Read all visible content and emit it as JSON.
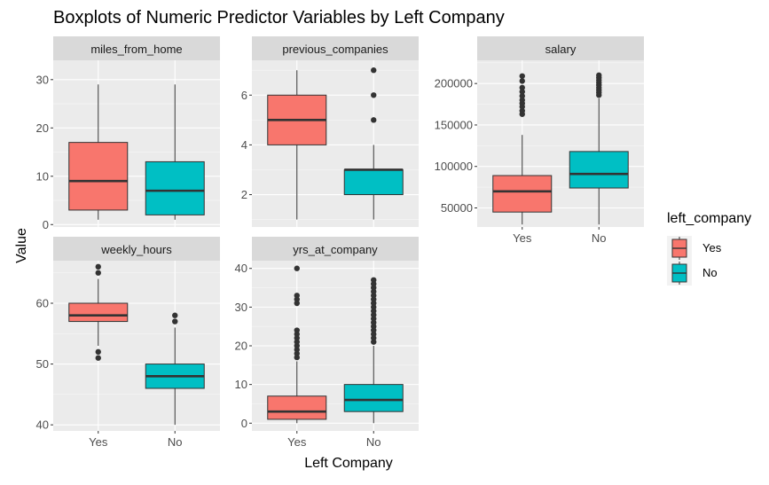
{
  "chart_data": {
    "type": "boxplot",
    "title": "Boxplots of Numeric Predictor Variables by Left Company",
    "xlabel": "Left Company",
    "ylabel": "Value",
    "categories": [
      "Yes",
      "No"
    ],
    "legend": {
      "title": "left_company",
      "position": "right",
      "entries": [
        {
          "label": "Yes",
          "color": "#F8766D"
        },
        {
          "label": "No",
          "color": "#00BFC4"
        }
      ]
    },
    "facets": [
      {
        "name": "miles_from_home",
        "ylim": [
          -0.5,
          34
        ],
        "yticks": [
          0,
          10,
          20,
          30
        ],
        "show_x_ticks": false,
        "boxes": [
          {
            "category": "Yes",
            "whisker_low": 1,
            "q1": 3,
            "median": 9,
            "q3": 17,
            "whisker_high": 29,
            "outliers": []
          },
          {
            "category": "No",
            "whisker_low": 1,
            "q1": 2,
            "median": 7,
            "q3": 13,
            "whisker_high": 29,
            "outliers": []
          }
        ]
      },
      {
        "name": "previous_companies",
        "ylim": [
          0.7,
          7.4
        ],
        "yticks": [
          2,
          4,
          6
        ],
        "show_x_ticks": false,
        "boxes": [
          {
            "category": "Yes",
            "whisker_low": 1,
            "q1": 4,
            "median": 5,
            "q3": 6,
            "whisker_high": 7,
            "outliers": []
          },
          {
            "category": "No",
            "whisker_low": 1,
            "q1": 2,
            "median": 3,
            "q3": 3,
            "whisker_high": 4,
            "outliers": [
              5,
              6,
              7
            ]
          }
        ]
      },
      {
        "name": "salary",
        "ylim": [
          27000,
          228000
        ],
        "yticks": [
          50000,
          100000,
          150000,
          200000
        ],
        "show_x_ticks": true,
        "boxes": [
          {
            "category": "Yes",
            "whisker_low": 30000,
            "q1": 45000,
            "median": 70000,
            "q3": 89000,
            "whisker_high": 138000,
            "outliers": [
              163000,
              167000,
              172000,
              176000,
              180000,
              185000,
              190000,
              195000,
              203000,
              209000
            ]
          },
          {
            "category": "No",
            "whisker_low": 30000,
            "q1": 74000,
            "median": 91000,
            "q3": 118000,
            "whisker_high": 182000,
            "outliers": [
              186000,
              189000,
              192000,
              195000,
              198000,
              201000,
              204000,
              207000,
              210000
            ]
          }
        ]
      },
      {
        "name": "weekly_hours",
        "ylim": [
          39,
          67
        ],
        "yticks": [
          40,
          50,
          60
        ],
        "show_x_ticks": true,
        "boxes": [
          {
            "category": "Yes",
            "whisker_low": 53,
            "q1": 57,
            "median": 58,
            "q3": 60,
            "whisker_high": 64,
            "outliers": [
              51,
              52,
              65,
              66
            ]
          },
          {
            "category": "No",
            "whisker_low": 40,
            "q1": 46,
            "median": 48,
            "q3": 50,
            "whisker_high": 56,
            "outliers": [
              57,
              58
            ]
          }
        ]
      },
      {
        "name": "yrs_at_company",
        "ylim": [
          -2,
          42
        ],
        "yticks": [
          0,
          10,
          20,
          30,
          40
        ],
        "show_x_ticks": true,
        "boxes": [
          {
            "category": "Yes",
            "whisker_low": 0,
            "q1": 1,
            "median": 3,
            "q3": 7,
            "whisker_high": 16,
            "outliers": [
              17,
              18,
              19,
              20,
              21,
              22,
              23,
              24,
              31,
              32,
              33,
              40
            ]
          },
          {
            "category": "No",
            "whisker_low": 0,
            "q1": 3,
            "median": 6,
            "q3": 10,
            "whisker_high": 20,
            "outliers": [
              21,
              22,
              23,
              24,
              25,
              26,
              27,
              28,
              29,
              30,
              31,
              32,
              33,
              34,
              35,
              36,
              37
            ]
          }
        ]
      }
    ]
  }
}
